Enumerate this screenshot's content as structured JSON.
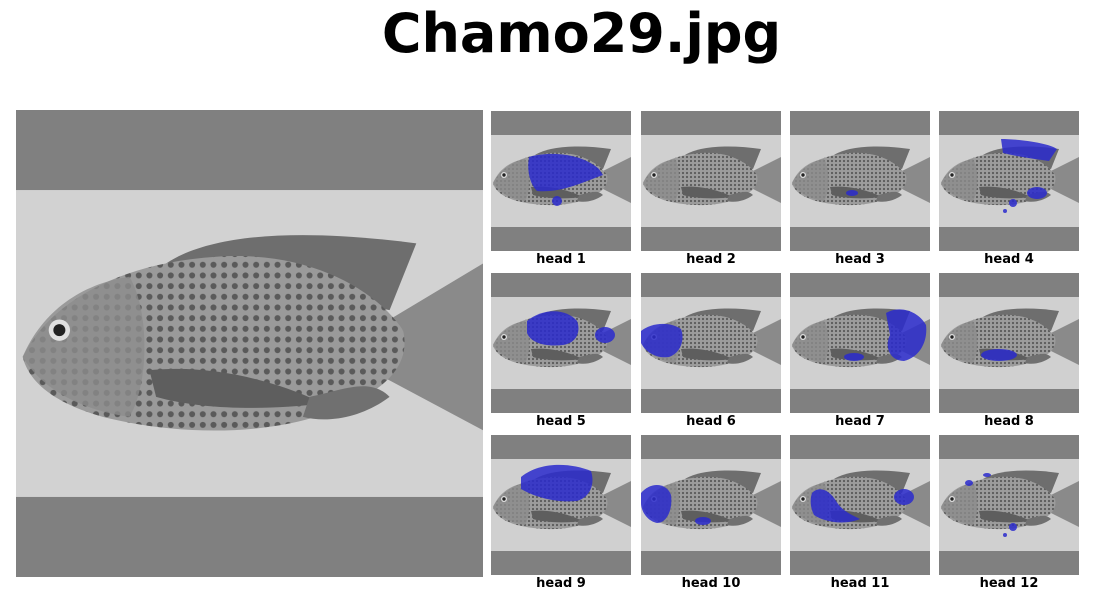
{
  "figure": {
    "title": "Chamo29.jpg"
  },
  "main_image": {
    "subject": "tilapia fish grayscale photo"
  },
  "overlay_color": "#2a2acc",
  "heads": [
    {
      "label": "head 1"
    },
    {
      "label": "head 2"
    },
    {
      "label": "head 3"
    },
    {
      "label": "head 4"
    },
    {
      "label": "head 5"
    },
    {
      "label": "head 6"
    },
    {
      "label": "head 7"
    },
    {
      "label": "head 8"
    },
    {
      "label": "head 9"
    },
    {
      "label": "head 10"
    },
    {
      "label": "head 11"
    },
    {
      "label": "head 12"
    }
  ]
}
